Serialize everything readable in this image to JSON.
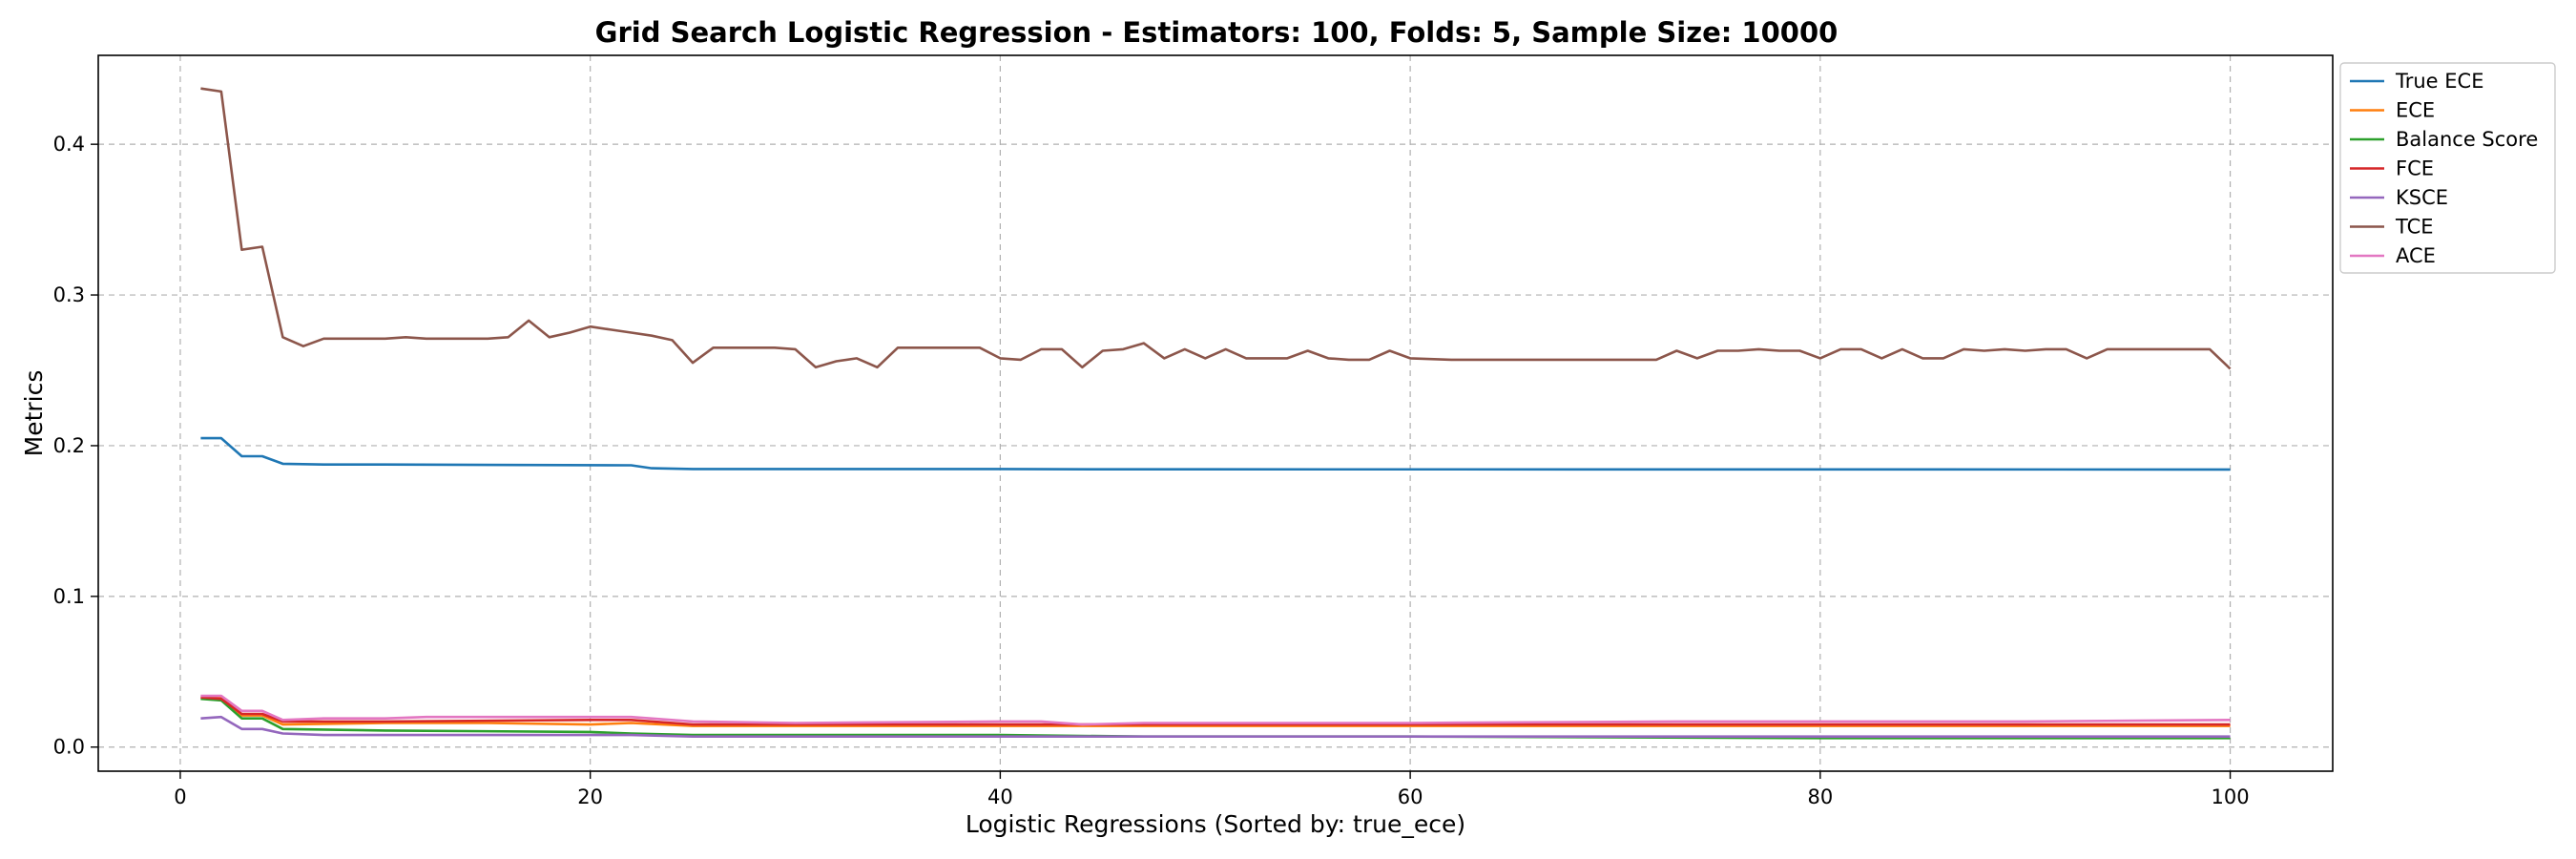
{
  "chart_data": {
    "type": "line",
    "title": "Grid Search Logistic Regression - Estimators: 100, Folds: 5, Sample Size: 10000",
    "xlabel": "Logistic Regressions (Sorted by: true_ece)",
    "ylabel": "Metrics",
    "xlim": [
      -4,
      105
    ],
    "ylim": [
      -0.016,
      0.459
    ],
    "xticks": [
      0,
      20,
      40,
      60,
      80,
      100
    ],
    "yticks": [
      0.0,
      0.1,
      0.2,
      0.3,
      0.4
    ],
    "grid": true,
    "legend_position": "outside-top-right",
    "series": [
      {
        "name": "True ECE",
        "color": "#1f77b4",
        "points": [
          [
            1,
            0.205
          ],
          [
            2,
            0.205
          ],
          [
            3,
            0.193
          ],
          [
            4,
            0.193
          ],
          [
            5,
            0.188
          ],
          [
            7,
            0.1875
          ],
          [
            10,
            0.1875
          ],
          [
            22,
            0.187
          ],
          [
            23,
            0.185
          ],
          [
            25,
            0.1845
          ],
          [
            40,
            0.1845
          ],
          [
            45,
            0.1843
          ],
          [
            100,
            0.1842
          ]
        ]
      },
      {
        "name": "ECE",
        "color": "#ff7f0e",
        "points": [
          [
            1,
            0.033
          ],
          [
            2,
            0.033
          ],
          [
            3,
            0.021
          ],
          [
            4,
            0.021
          ],
          [
            5,
            0.015
          ],
          [
            10,
            0.016
          ],
          [
            15,
            0.016
          ],
          [
            20,
            0.015
          ],
          [
            22,
            0.016
          ],
          [
            25,
            0.014
          ],
          [
            40,
            0.014
          ],
          [
            60,
            0.014
          ],
          [
            80,
            0.014
          ],
          [
            100,
            0.014
          ]
        ]
      },
      {
        "name": "Balance Score",
        "color": "#2ca02c",
        "points": [
          [
            1,
            0.032
          ],
          [
            2,
            0.031
          ],
          [
            3,
            0.019
          ],
          [
            4,
            0.019
          ],
          [
            5,
            0.012
          ],
          [
            10,
            0.011
          ],
          [
            20,
            0.01
          ],
          [
            22,
            0.009
          ],
          [
            25,
            0.008
          ],
          [
            40,
            0.008
          ],
          [
            47,
            0.007
          ],
          [
            60,
            0.007
          ],
          [
            80,
            0.006
          ],
          [
            100,
            0.006
          ]
        ]
      },
      {
        "name": "FCE",
        "color": "#d62728",
        "points": [
          [
            1,
            0.033
          ],
          [
            2,
            0.032
          ],
          [
            3,
            0.022
          ],
          [
            4,
            0.022
          ],
          [
            5,
            0.017
          ],
          [
            10,
            0.017
          ],
          [
            20,
            0.018
          ],
          [
            22,
            0.018
          ],
          [
            25,
            0.015
          ],
          [
            40,
            0.015
          ],
          [
            60,
            0.015
          ],
          [
            80,
            0.015
          ],
          [
            100,
            0.015
          ]
        ]
      },
      {
        "name": "KSCE",
        "color": "#9467bd",
        "points": [
          [
            1,
            0.019
          ],
          [
            2,
            0.02
          ],
          [
            3,
            0.012
          ],
          [
            4,
            0.012
          ],
          [
            5,
            0.009
          ],
          [
            7,
            0.008
          ],
          [
            20,
            0.008
          ],
          [
            22,
            0.008
          ],
          [
            25,
            0.007
          ],
          [
            40,
            0.007
          ],
          [
            60,
            0.007
          ],
          [
            80,
            0.007
          ],
          [
            100,
            0.007
          ]
        ]
      },
      {
        "name": "TCE",
        "color": "#8c564b",
        "points": [
          [
            1,
            0.437
          ],
          [
            2,
            0.435
          ],
          [
            3,
            0.33
          ],
          [
            4,
            0.332
          ],
          [
            5,
            0.272
          ],
          [
            6,
            0.266
          ],
          [
            7,
            0.271
          ],
          [
            8,
            0.271
          ],
          [
            9,
            0.271
          ],
          [
            10,
            0.271
          ],
          [
            11,
            0.272
          ],
          [
            12,
            0.271
          ],
          [
            13,
            0.271
          ],
          [
            14,
            0.271
          ],
          [
            15,
            0.271
          ],
          [
            16,
            0.272
          ],
          [
            17,
            0.283
          ],
          [
            18,
            0.272
          ],
          [
            19,
            0.275
          ],
          [
            20,
            0.279
          ],
          [
            21,
            0.277
          ],
          [
            22,
            0.275
          ],
          [
            23,
            0.273
          ],
          [
            24,
            0.27
          ],
          [
            25,
            0.255
          ],
          [
            26,
            0.265
          ],
          [
            27,
            0.265
          ],
          [
            28,
            0.265
          ],
          [
            29,
            0.265
          ],
          [
            30,
            0.264
          ],
          [
            31,
            0.252
          ],
          [
            32,
            0.256
          ],
          [
            33,
            0.258
          ],
          [
            34,
            0.252
          ],
          [
            35,
            0.265
          ],
          [
            36,
            0.265
          ],
          [
            37,
            0.265
          ],
          [
            38,
            0.265
          ],
          [
            39,
            0.265
          ],
          [
            40,
            0.258
          ],
          [
            41,
            0.257
          ],
          [
            42,
            0.264
          ],
          [
            43,
            0.264
          ],
          [
            44,
            0.252
          ],
          [
            45,
            0.263
          ],
          [
            46,
            0.264
          ],
          [
            47,
            0.268
          ],
          [
            48,
            0.258
          ],
          [
            49,
            0.264
          ],
          [
            50,
            0.258
          ],
          [
            51,
            0.264
          ],
          [
            52,
            0.258
          ],
          [
            53,
            0.258
          ],
          [
            54,
            0.258
          ],
          [
            55,
            0.263
          ],
          [
            56,
            0.258
          ],
          [
            57,
            0.257
          ],
          [
            58,
            0.257
          ],
          [
            59,
            0.263
          ],
          [
            60,
            0.258
          ],
          [
            62,
            0.257
          ],
          [
            64,
            0.257
          ],
          [
            66,
            0.257
          ],
          [
            68,
            0.257
          ],
          [
            70,
            0.257
          ],
          [
            72,
            0.257
          ],
          [
            73,
            0.263
          ],
          [
            74,
            0.258
          ],
          [
            75,
            0.263
          ],
          [
            76,
            0.263
          ],
          [
            77,
            0.264
          ],
          [
            78,
            0.263
          ],
          [
            79,
            0.263
          ],
          [
            80,
            0.258
          ],
          [
            81,
            0.264
          ],
          [
            82,
            0.264
          ],
          [
            83,
            0.258
          ],
          [
            84,
            0.264
          ],
          [
            85,
            0.258
          ],
          [
            86,
            0.258
          ],
          [
            87,
            0.264
          ],
          [
            88,
            0.263
          ],
          [
            89,
            0.264
          ],
          [
            90,
            0.263
          ],
          [
            91,
            0.264
          ],
          [
            92,
            0.264
          ],
          [
            93,
            0.258
          ],
          [
            94,
            0.264
          ],
          [
            95,
            0.264
          ],
          [
            96,
            0.264
          ],
          [
            97,
            0.264
          ],
          [
            98,
            0.264
          ],
          [
            99,
            0.264
          ],
          [
            100,
            0.251
          ]
        ]
      },
      {
        "name": "ACE",
        "color": "#e377c2",
        "points": [
          [
            1,
            0.034
          ],
          [
            2,
            0.034
          ],
          [
            3,
            0.024
          ],
          [
            4,
            0.024
          ],
          [
            5,
            0.018
          ],
          [
            7,
            0.019
          ],
          [
            10,
            0.019
          ],
          [
            12,
            0.02
          ],
          [
            16,
            0.02
          ],
          [
            20,
            0.02
          ],
          [
            22,
            0.02
          ],
          [
            25,
            0.017
          ],
          [
            30,
            0.016
          ],
          [
            40,
            0.017
          ],
          [
            42,
            0.017
          ],
          [
            44,
            0.015
          ],
          [
            47,
            0.016
          ],
          [
            60,
            0.016
          ],
          [
            73,
            0.017
          ],
          [
            80,
            0.017
          ],
          [
            90,
            0.017
          ],
          [
            100,
            0.018
          ]
        ]
      }
    ]
  }
}
